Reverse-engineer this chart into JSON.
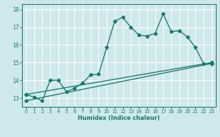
{
  "xlabel": "Humidex (Indice chaleur)",
  "bg_color": "#cfe8ec",
  "grid_color": "#ffffff",
  "line_color": "#1a7a6e",
  "xlim": [
    -0.5,
    23.5
  ],
  "ylim": [
    12.5,
    18.3
  ],
  "xticks": [
    0,
    1,
    2,
    3,
    4,
    5,
    6,
    7,
    8,
    9,
    10,
    11,
    12,
    13,
    14,
    15,
    16,
    17,
    18,
    19,
    20,
    21,
    22,
    23
  ],
  "yticks": [
    13,
    14,
    15,
    16,
    17,
    18
  ],
  "line1_x": [
    0,
    1,
    2,
    3,
    4,
    5,
    6,
    7,
    8,
    9,
    10,
    11,
    12,
    13,
    14,
    15,
    16,
    17,
    18,
    19,
    20,
    21,
    22,
    23
  ],
  "line1_y": [
    13.2,
    13.05,
    12.85,
    14.0,
    14.0,
    13.35,
    13.55,
    13.85,
    14.3,
    14.35,
    15.85,
    17.35,
    17.55,
    17.0,
    16.55,
    16.5,
    16.65,
    17.75,
    16.75,
    16.8,
    16.45,
    15.85,
    14.95,
    14.95
  ],
  "line2_x": [
    0,
    23
  ],
  "line2_y": [
    13.2,
    15.0
  ],
  "line3_x": [
    0,
    23
  ],
  "line3_y": [
    12.85,
    14.95
  ],
  "marker": "D",
  "markersize": 2.5,
  "linewidth": 1.0
}
